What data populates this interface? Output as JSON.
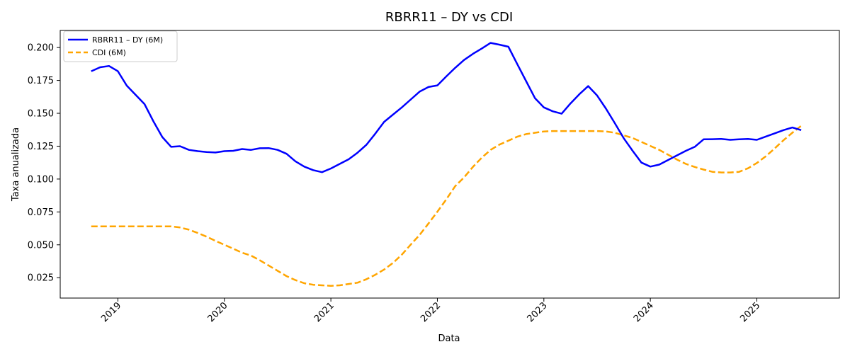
{
  "chart_data": {
    "type": "line",
    "title": "RBRR11 – DY vs CDI",
    "xlabel": "Data",
    "ylabel": "Taxa anualizada",
    "x_ticks": [
      "2019",
      "2020",
      "2021",
      "2022",
      "2023",
      "2024",
      "2025"
    ],
    "y_ticks": [
      "0.025",
      "0.050",
      "0.075",
      "0.100",
      "0.125",
      "0.150",
      "0.175",
      "0.200"
    ],
    "xlim": [
      "2018-06",
      "2025-10"
    ],
    "ylim": [
      0.0095,
      0.213
    ],
    "grid": false,
    "legend_position": "top-left",
    "series": [
      {
        "name": "RBRR11 – DY (6M)",
        "color": "#0000ff",
        "style": "solid",
        "points": [
          [
            "2018-10",
            0.182
          ],
          [
            "2018-11",
            0.185
          ],
          [
            "2018-12",
            0.186
          ],
          [
            "2019-01",
            0.182
          ],
          [
            "2019-02",
            0.171
          ],
          [
            "2019-03",
            0.164
          ],
          [
            "2019-04",
            0.157
          ],
          [
            "2019-05",
            0.144
          ],
          [
            "2019-06",
            0.132
          ],
          [
            "2019-07",
            0.1245
          ],
          [
            "2019-08",
            0.125
          ],
          [
            "2019-09",
            0.1222
          ],
          [
            "2019-10",
            0.1212
          ],
          [
            "2019-11",
            0.1205
          ],
          [
            "2019-12",
            0.1202
          ],
          [
            "2020-01",
            0.1212
          ],
          [
            "2020-02",
            0.1215
          ],
          [
            "2020-03",
            0.1228
          ],
          [
            "2020-04",
            0.1222
          ],
          [
            "2020-05",
            0.1234
          ],
          [
            "2020-06",
            0.1235
          ],
          [
            "2020-07",
            0.1222
          ],
          [
            "2020-08",
            0.1192
          ],
          [
            "2020-09",
            0.1135
          ],
          [
            "2020-10",
            0.1095
          ],
          [
            "2020-11",
            0.1068
          ],
          [
            "2020-12",
            0.1052
          ],
          [
            "2021-01",
            0.108
          ],
          [
            "2021-02",
            0.1115
          ],
          [
            "2021-03",
            0.115
          ],
          [
            "2021-04",
            0.12
          ],
          [
            "2021-05",
            0.126
          ],
          [
            "2021-06",
            0.1345
          ],
          [
            "2021-07",
            0.1435
          ],
          [
            "2021-08",
            0.149
          ],
          [
            "2021-09",
            0.1545
          ],
          [
            "2021-10",
            0.1605
          ],
          [
            "2021-11",
            0.1665
          ],
          [
            "2021-12",
            0.17
          ],
          [
            "2022-01",
            0.1712
          ],
          [
            "2022-02",
            0.178
          ],
          [
            "2022-03",
            0.1845
          ],
          [
            "2022-04",
            0.1905
          ],
          [
            "2022-05",
            0.1952
          ],
          [
            "2022-06",
            0.1992
          ],
          [
            "2022-07",
            0.2035
          ],
          [
            "2022-08",
            0.2022
          ],
          [
            "2022-09",
            0.2006
          ],
          [
            "2022-10",
            0.1875
          ],
          [
            "2022-11",
            0.1745
          ],
          [
            "2022-12",
            0.1615
          ],
          [
            "2023-01",
            0.1545
          ],
          [
            "2023-02",
            0.1515
          ],
          [
            "2023-03",
            0.1497
          ],
          [
            "2023-04",
            0.1575
          ],
          [
            "2023-05",
            0.1645
          ],
          [
            "2023-06",
            0.1707
          ],
          [
            "2023-07",
            0.1635
          ],
          [
            "2023-08",
            0.1535
          ],
          [
            "2023-09",
            0.1425
          ],
          [
            "2023-10",
            0.131
          ],
          [
            "2023-11",
            0.1215
          ],
          [
            "2023-12",
            0.1125
          ],
          [
            "2024-01",
            0.1095
          ],
          [
            "2024-02",
            0.111
          ],
          [
            "2024-03",
            0.1145
          ],
          [
            "2024-04",
            0.118
          ],
          [
            "2024-05",
            0.1215
          ],
          [
            "2024-06",
            0.1245
          ],
          [
            "2024-07",
            0.1302
          ],
          [
            "2024-08",
            0.1303
          ],
          [
            "2024-09",
            0.1305
          ],
          [
            "2024-10",
            0.1298
          ],
          [
            "2024-11",
            0.1302
          ],
          [
            "2024-12",
            0.1305
          ],
          [
            "2025-01",
            0.1298
          ],
          [
            "2025-02",
            0.1323
          ],
          [
            "2025-03",
            0.1347
          ],
          [
            "2025-04",
            0.1372
          ],
          [
            "2025-05",
            0.1392
          ],
          [
            "2025-06",
            0.1372
          ]
        ]
      },
      {
        "name": "CDI (6M)",
        "color": "#ffa500",
        "style": "dashed",
        "points": [
          [
            "2018-10",
            0.064
          ],
          [
            "2018-11",
            0.064
          ],
          [
            "2018-12",
            0.064
          ],
          [
            "2019-01",
            0.064
          ],
          [
            "2019-02",
            0.064
          ],
          [
            "2019-03",
            0.064
          ],
          [
            "2019-04",
            0.064
          ],
          [
            "2019-05",
            0.064
          ],
          [
            "2019-06",
            0.064
          ],
          [
            "2019-07",
            0.064
          ],
          [
            "2019-08",
            0.0632
          ],
          [
            "2019-09",
            0.0615
          ],
          [
            "2019-10",
            0.059
          ],
          [
            "2019-11",
            0.0562
          ],
          [
            "2019-12",
            0.053
          ],
          [
            "2020-01",
            0.05
          ],
          [
            "2020-02",
            0.047
          ],
          [
            "2020-03",
            0.044
          ],
          [
            "2020-04",
            0.0418
          ],
          [
            "2020-05",
            0.0382
          ],
          [
            "2020-06",
            0.0342
          ],
          [
            "2020-07",
            0.0302
          ],
          [
            "2020-08",
            0.0262
          ],
          [
            "2020-09",
            0.0232
          ],
          [
            "2020-10",
            0.0208
          ],
          [
            "2020-11",
            0.0196
          ],
          [
            "2020-12",
            0.0192
          ],
          [
            "2021-01",
            0.0188
          ],
          [
            "2021-02",
            0.0192
          ],
          [
            "2021-03",
            0.0202
          ],
          [
            "2021-04",
            0.0212
          ],
          [
            "2021-05",
            0.0238
          ],
          [
            "2021-06",
            0.0272
          ],
          [
            "2021-07",
            0.0312
          ],
          [
            "2021-08",
            0.0362
          ],
          [
            "2021-09",
            0.0425
          ],
          [
            "2021-10",
            0.0502
          ],
          [
            "2021-11",
            0.0575
          ],
          [
            "2021-12",
            0.0662
          ],
          [
            "2022-01",
            0.0752
          ],
          [
            "2022-02",
            0.0845
          ],
          [
            "2022-03",
            0.0945
          ],
          [
            "2022-04",
            0.1012
          ],
          [
            "2022-05",
            0.1092
          ],
          [
            "2022-06",
            0.1162
          ],
          [
            "2022-07",
            0.1222
          ],
          [
            "2022-08",
            0.1262
          ],
          [
            "2022-09",
            0.1292
          ],
          [
            "2022-10",
            0.1322
          ],
          [
            "2022-11",
            0.1342
          ],
          [
            "2022-12",
            0.1352
          ],
          [
            "2023-01",
            0.1362
          ],
          [
            "2023-02",
            0.1365
          ],
          [
            "2023-03",
            0.1365
          ],
          [
            "2023-04",
            0.1365
          ],
          [
            "2023-05",
            0.1365
          ],
          [
            "2023-06",
            0.1365
          ],
          [
            "2023-07",
            0.1365
          ],
          [
            "2023-08",
            0.1362
          ],
          [
            "2023-09",
            0.1352
          ],
          [
            "2023-10",
            0.1332
          ],
          [
            "2023-11",
            0.1312
          ],
          [
            "2023-12",
            0.1282
          ],
          [
            "2024-01",
            0.1252
          ],
          [
            "2024-02",
            0.1222
          ],
          [
            "2024-03",
            0.1185
          ],
          [
            "2024-04",
            0.1148
          ],
          [
            "2024-05",
            0.1115
          ],
          [
            "2024-06",
            0.1092
          ],
          [
            "2024-07",
            0.1072
          ],
          [
            "2024-08",
            0.1055
          ],
          [
            "2024-09",
            0.105
          ],
          [
            "2024-10",
            0.105
          ],
          [
            "2024-11",
            0.1055
          ],
          [
            "2024-12",
            0.1082
          ],
          [
            "2025-01",
            0.1122
          ],
          [
            "2025-02",
            0.1172
          ],
          [
            "2025-03",
            0.1232
          ],
          [
            "2025-04",
            0.1295
          ],
          [
            "2025-05",
            0.1352
          ],
          [
            "2025-06",
            0.1405
          ]
        ]
      }
    ]
  }
}
